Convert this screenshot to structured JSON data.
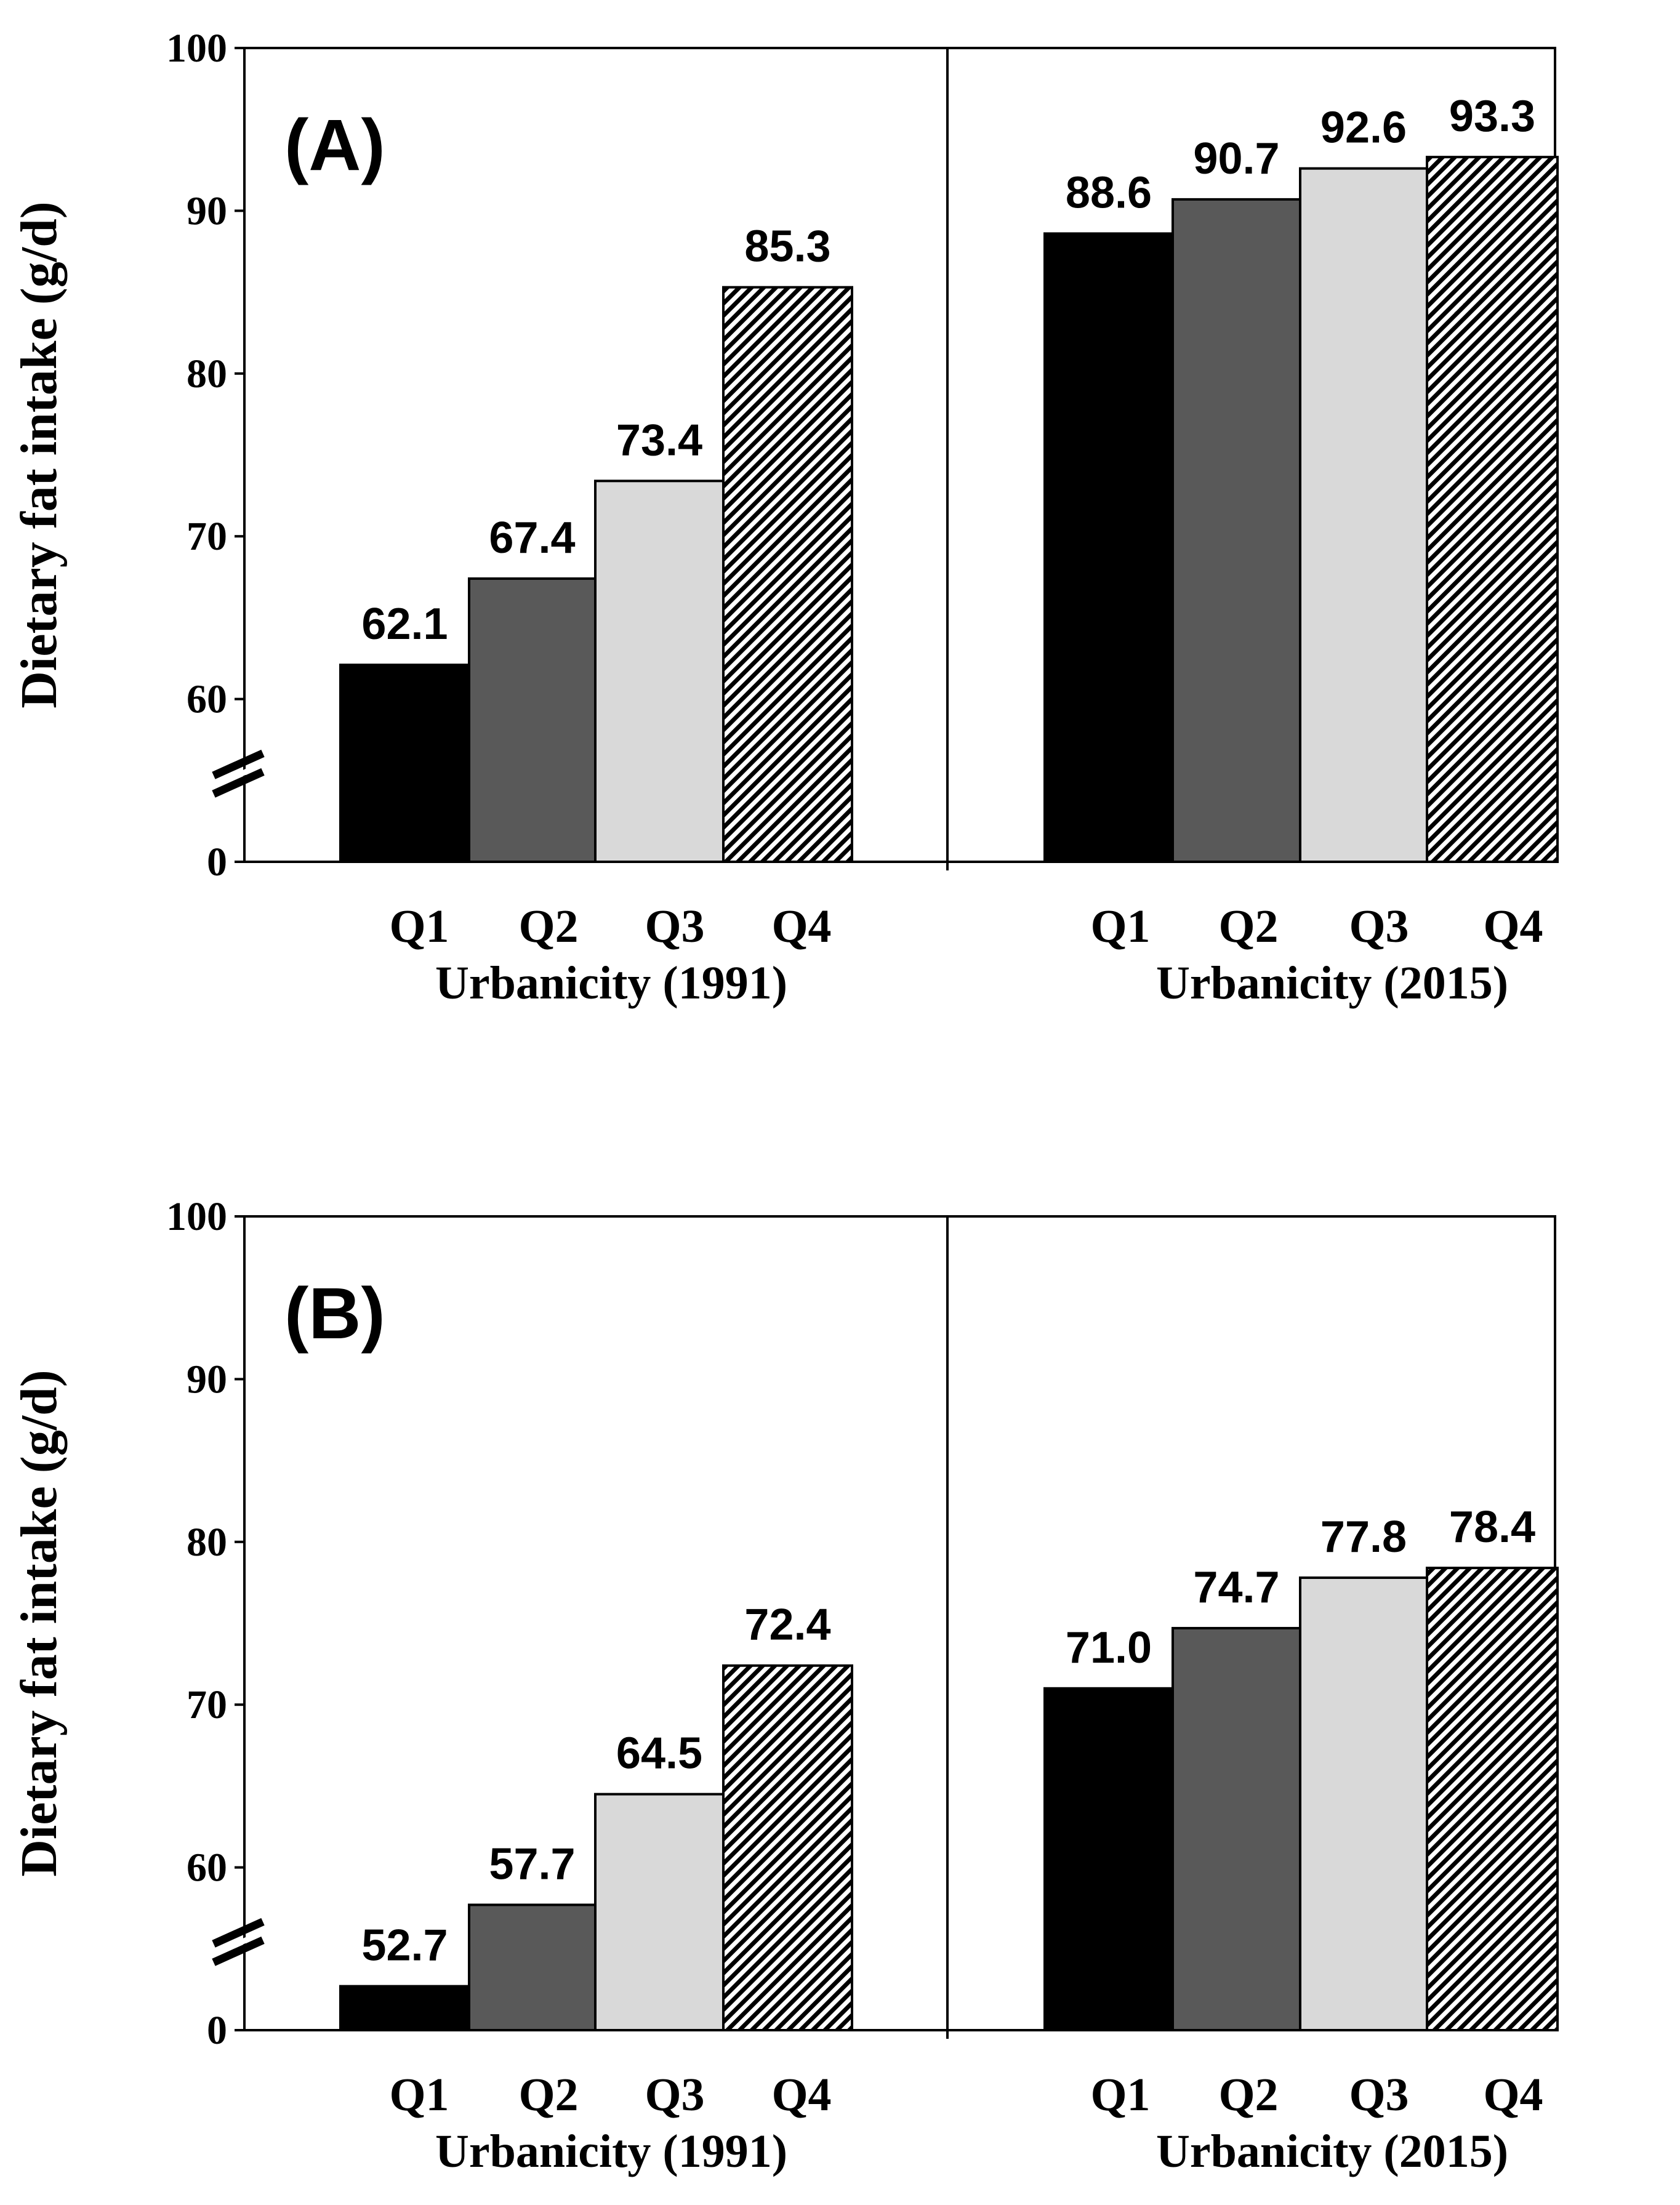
{
  "chart_data": [
    {
      "type": "bar",
      "panel_label": "(A)",
      "ylabel": "Dietary fat intake (g/d)",
      "ylim": [
        0,
        100
      ],
      "y_ticks": [
        "0",
        "60",
        "70",
        "80",
        "90",
        "100"
      ],
      "axis_break": true,
      "groups": [
        {
          "xlabel": "Urbanicity (1991)",
          "categories": [
            "Q1",
            "Q2",
            "Q3",
            "Q4"
          ],
          "values": [
            62.1,
            67.4,
            73.4,
            85.3
          ],
          "labels": [
            "62.1",
            "67.4",
            "73.4",
            "85.3"
          ]
        },
        {
          "xlabel": "Urbanicity (2015)",
          "categories": [
            "Q1",
            "Q2",
            "Q3",
            "Q4"
          ],
          "values": [
            88.6,
            90.7,
            92.6,
            93.3
          ],
          "labels": [
            "88.6",
            "90.7",
            "92.6",
            "93.3"
          ]
        }
      ]
    },
    {
      "type": "bar",
      "panel_label": "(B)",
      "ylabel": "Dietary fat intake (g/d)",
      "ylim": [
        0,
        100
      ],
      "y_ticks": [
        "0",
        "60",
        "70",
        "80",
        "90",
        "100"
      ],
      "axis_break": true,
      "groups": [
        {
          "xlabel": "Urbanicity (1991)",
          "categories": [
            "Q1",
            "Q2",
            "Q3",
            "Q4"
          ],
          "values": [
            52.7,
            57.7,
            64.5,
            72.4
          ],
          "labels": [
            "52.7",
            "57.7",
            "64.5",
            "72.4"
          ]
        },
        {
          "xlabel": "Urbanicity (2015)",
          "categories": [
            "Q1",
            "Q2",
            "Q3",
            "Q4"
          ],
          "values": [
            71.0,
            74.7,
            77.8,
            78.4
          ],
          "labels": [
            "71.0",
            "74.7",
            "77.8",
            "78.4"
          ]
        }
      ]
    }
  ],
  "colors": {
    "Q1": "#000000",
    "Q2": "#595959",
    "Q3": "#d9d9d9",
    "Q4_hatch_fg": "#000000",
    "Q4_hatch_bg": "#ffffff",
    "axis": "#000000"
  }
}
